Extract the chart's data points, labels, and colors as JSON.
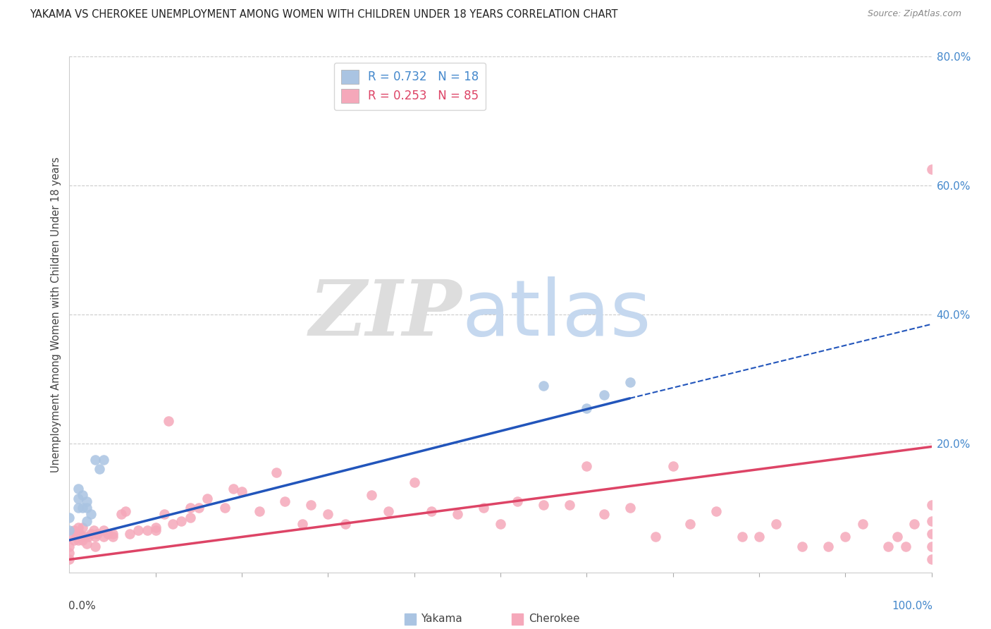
{
  "title": "YAKAMA VS CHEROKEE UNEMPLOYMENT AMONG WOMEN WITH CHILDREN UNDER 18 YEARS CORRELATION CHART",
  "source": "Source: ZipAtlas.com",
  "ylabel": "Unemployment Among Women with Children Under 18 years",
  "yakama_R": 0.732,
  "yakama_N": 18,
  "cherokee_R": 0.253,
  "cherokee_N": 85,
  "yakama_color": "#aac4e2",
  "cherokee_color": "#f5a8ba",
  "yakama_line_color": "#2255bb",
  "cherokee_line_color": "#dd4466",
  "xlim": [
    0,
    1.0
  ],
  "ylim": [
    0,
    0.8
  ],
  "yticks": [
    0.0,
    0.2,
    0.4,
    0.6,
    0.8
  ],
  "yticklabels": [
    "",
    "20.0%",
    "40.0%",
    "60.0%",
    "80.0%"
  ],
  "yakama_line_x0": 0.0,
  "yakama_line_y0": 0.05,
  "yakama_line_x1": 0.65,
  "yakama_line_y1": 0.27,
  "yakama_line_xend": 1.0,
  "yakama_line_yend": 0.385,
  "cherokee_line_x0": 0.0,
  "cherokee_line_y0": 0.02,
  "cherokee_line_x1": 1.0,
  "cherokee_line_y1": 0.195,
  "yakama_x": [
    0.0,
    0.0,
    0.01,
    0.01,
    0.01,
    0.015,
    0.015,
    0.02,
    0.02,
    0.02,
    0.025,
    0.03,
    0.035,
    0.04,
    0.55,
    0.6,
    0.62,
    0.65
  ],
  "yakama_y": [
    0.065,
    0.085,
    0.1,
    0.115,
    0.13,
    0.1,
    0.12,
    0.08,
    0.1,
    0.11,
    0.09,
    0.175,
    0.16,
    0.175,
    0.29,
    0.255,
    0.275,
    0.295
  ],
  "cherokee_x": [
    0.0,
    0.0,
    0.0,
    0.0,
    0.005,
    0.005,
    0.008,
    0.01,
    0.01,
    0.01,
    0.012,
    0.015,
    0.015,
    0.018,
    0.02,
    0.022,
    0.025,
    0.028,
    0.03,
    0.03,
    0.032,
    0.04,
    0.04,
    0.045,
    0.05,
    0.05,
    0.06,
    0.065,
    0.07,
    0.08,
    0.09,
    0.1,
    0.1,
    0.11,
    0.115,
    0.12,
    0.13,
    0.14,
    0.14,
    0.15,
    0.16,
    0.18,
    0.19,
    0.2,
    0.22,
    0.24,
    0.25,
    0.27,
    0.28,
    0.3,
    0.32,
    0.35,
    0.37,
    0.4,
    0.42,
    0.45,
    0.48,
    0.5,
    0.52,
    0.55,
    0.58,
    0.6,
    0.62,
    0.65,
    0.68,
    0.7,
    0.72,
    0.75,
    0.78,
    0.8,
    0.82,
    0.85,
    0.88,
    0.9,
    0.92,
    0.95,
    0.96,
    0.97,
    0.98,
    1.0,
    1.0,
    1.0,
    1.0,
    1.0,
    1.0
  ],
  "cherokee_y": [
    0.02,
    0.03,
    0.04,
    0.055,
    0.05,
    0.065,
    0.06,
    0.05,
    0.06,
    0.07,
    0.06,
    0.05,
    0.07,
    0.055,
    0.045,
    0.055,
    0.06,
    0.065,
    0.04,
    0.055,
    0.06,
    0.055,
    0.065,
    0.06,
    0.055,
    0.06,
    0.09,
    0.095,
    0.06,
    0.065,
    0.065,
    0.07,
    0.065,
    0.09,
    0.235,
    0.075,
    0.08,
    0.085,
    0.1,
    0.1,
    0.115,
    0.1,
    0.13,
    0.125,
    0.095,
    0.155,
    0.11,
    0.075,
    0.105,
    0.09,
    0.075,
    0.12,
    0.095,
    0.14,
    0.095,
    0.09,
    0.1,
    0.075,
    0.11,
    0.105,
    0.105,
    0.165,
    0.09,
    0.1,
    0.055,
    0.165,
    0.075,
    0.095,
    0.055,
    0.055,
    0.075,
    0.04,
    0.04,
    0.055,
    0.075,
    0.04,
    0.055,
    0.04,
    0.075,
    0.02,
    0.04,
    0.06,
    0.08,
    0.105,
    0.625
  ]
}
